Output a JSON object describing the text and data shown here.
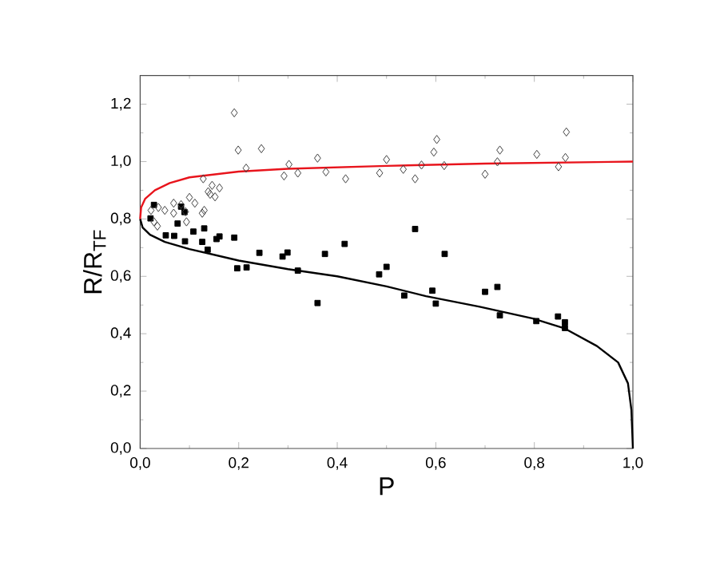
{
  "chart_data": {
    "type": "scatter",
    "xlabel": "P",
    "ylabel": "R/R$_{TF}$",
    "xlim": [
      0,
      1
    ],
    "ylim": [
      0,
      1.3
    ],
    "xticks": [
      {
        "value": 0,
        "label": "0,0"
      },
      {
        "value": 0.2,
        "label": "0,2"
      },
      {
        "value": 0.4,
        "label": "0,4"
      },
      {
        "value": 0.6,
        "label": "0,6"
      },
      {
        "value": 0.8,
        "label": "0,8"
      },
      {
        "value": 1.0,
        "label": "1,0"
      }
    ],
    "yticks": [
      {
        "value": 0,
        "label": "0,0"
      },
      {
        "value": 0.2,
        "label": "0,2"
      },
      {
        "value": 0.4,
        "label": "0,4"
      },
      {
        "value": 0.6,
        "label": "0,6"
      },
      {
        "value": 0.8,
        "label": "0,8"
      },
      {
        "value": 1.0,
        "label": "1,0"
      },
      {
        "value": 1.2,
        "label": "1,2"
      }
    ],
    "grid": false,
    "series": [
      {
        "marker": "diamond",
        "color": "#404040",
        "x": [
          0.191,
          0.199,
          0.246,
          0.215,
          0.128,
          0.302,
          0.292,
          0.32,
          0.36,
          0.377,
          0.417,
          0.022,
          0.037,
          0.035,
          0.028,
          0.05,
          0.068,
          0.068,
          0.083,
          0.092,
          0.094,
          0.1,
          0.111,
          0.126,
          0.13,
          0.138,
          0.146,
          0.152,
          0.161,
          0.142,
          0.486,
          0.5,
          0.534,
          0.558,
          0.571,
          0.596,
          0.602,
          0.617,
          0.7,
          0.73,
          0.725,
          0.805,
          0.849,
          0.863,
          0.865
        ],
        "values": [
          1.17,
          1.04,
          1.045,
          0.977,
          0.94,
          0.99,
          0.95,
          0.96,
          1.012,
          0.964,
          0.94,
          0.83,
          0.84,
          0.775,
          0.79,
          0.83,
          0.855,
          0.82,
          0.85,
          0.825,
          0.79,
          0.875,
          0.855,
          0.82,
          0.83,
          0.895,
          0.917,
          0.877,
          0.908,
          0.886,
          0.96,
          1.007,
          0.973,
          0.94,
          0.988,
          1.033,
          1.077,
          0.986,
          0.956,
          1.04,
          0.999,
          1.025,
          0.982,
          1.014,
          1.103
        ]
      },
      {
        "marker": "square",
        "color": "#000000",
        "x": [
          0.021,
          0.028,
          0.052,
          0.069,
          0.076,
          0.083,
          0.09,
          0.091,
          0.108,
          0.126,
          0.13,
          0.137,
          0.155,
          0.161,
          0.191,
          0.197,
          0.216,
          0.242,
          0.289,
          0.299,
          0.32,
          0.36,
          0.375,
          0.415,
          0.485,
          0.5,
          0.558,
          0.618,
          0.536,
          0.593,
          0.6,
          0.7,
          0.725,
          0.73,
          0.804,
          0.848,
          0.862,
          0.862
        ],
        "values": [
          0.802,
          0.849,
          0.743,
          0.741,
          0.784,
          0.843,
          0.824,
          0.722,
          0.756,
          0.72,
          0.767,
          0.693,
          0.73,
          0.739,
          0.735,
          0.628,
          0.631,
          0.682,
          0.669,
          0.683,
          0.62,
          0.507,
          0.678,
          0.713,
          0.607,
          0.633,
          0.765,
          0.678,
          0.533,
          0.55,
          0.505,
          0.546,
          0.563,
          0.464,
          0.444,
          0.46,
          0.44,
          0.42
        ]
      },
      {
        "type": "line",
        "marker": "none",
        "color": "#e8141c",
        "x": [
          0,
          0.002,
          0.01,
          0.03,
          0.06,
          0.1,
          0.2,
          0.3,
          0.5,
          0.7,
          1.0
        ],
        "values": [
          0.8,
          0.84,
          0.87,
          0.9,
          0.925,
          0.945,
          0.965,
          0.975,
          0.985,
          0.993,
          1.0
        ]
      },
      {
        "type": "line",
        "marker": "none",
        "color": "#000000",
        "x": [
          0,
          0.005,
          0.02,
          0.05,
          0.1,
          0.2,
          0.3,
          0.4,
          0.5,
          0.58,
          0.689,
          0.797,
          0.862,
          0.927,
          0.97,
          0.99,
          0.997,
          1.0
        ],
        "values": [
          0.8,
          0.77,
          0.745,
          0.72,
          0.695,
          0.655,
          0.625,
          0.6,
          0.565,
          0.531,
          0.494,
          0.453,
          0.418,
          0.357,
          0.3,
          0.227,
          0.134,
          0.0
        ]
      }
    ]
  }
}
